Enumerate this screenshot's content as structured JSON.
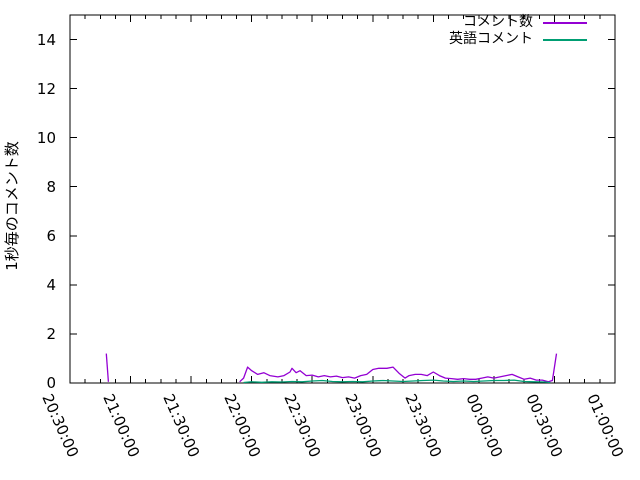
{
  "chart_data": {
    "type": "line",
    "title": "",
    "xlabel": "",
    "ylabel": "1秒毎のコメント数",
    "ylim": [
      0,
      15
    ],
    "y_ticks": [
      0,
      2,
      4,
      6,
      8,
      10,
      12,
      14
    ],
    "x_tick_labels": [
      "20:30:00",
      "21:00:00",
      "21:30:00",
      "22:00:00",
      "22:30:00",
      "23:00:00",
      "23:30:00",
      "00:00:00",
      "00:30:00",
      "01:00:00"
    ],
    "x_major_interval_min": 30,
    "x_minor_divisions": 4,
    "grid": false,
    "legend_position": "top-right",
    "background": "#ffffff",
    "border_color": "#000000",
    "series": [
      {
        "name": "コメント数",
        "color": "#9400d3",
        "points": [
          [
            "20:48",
            1.2
          ],
          [
            "20:49",
            0.05
          ],
          null,
          [
            "21:54",
            0.05
          ],
          [
            "21:56",
            0.2
          ],
          [
            "21:58",
            0.65
          ],
          [
            "22:00",
            0.5
          ],
          [
            "22:03",
            0.35
          ],
          [
            "22:06",
            0.42
          ],
          [
            "22:09",
            0.3
          ],
          [
            "22:13",
            0.25
          ],
          [
            "22:16",
            0.3
          ],
          [
            "22:19",
            0.45
          ],
          [
            "22:20",
            0.6
          ],
          [
            "22:22",
            0.42
          ],
          [
            "22:24",
            0.5
          ],
          [
            "22:27",
            0.3
          ],
          [
            "22:30",
            0.32
          ],
          [
            "22:33",
            0.25
          ],
          [
            "22:36",
            0.3
          ],
          [
            "22:39",
            0.25
          ],
          [
            "22:42",
            0.28
          ],
          [
            "22:45",
            0.22
          ],
          [
            "22:48",
            0.25
          ],
          [
            "22:51",
            0.2
          ],
          [
            "22:54",
            0.3
          ],
          [
            "22:57",
            0.35
          ],
          [
            "23:00",
            0.55
          ],
          [
            "23:03",
            0.6
          ],
          [
            "23:07",
            0.6
          ],
          [
            "23:10",
            0.65
          ],
          [
            "23:13",
            0.4
          ],
          [
            "23:16",
            0.2
          ],
          [
            "23:18",
            0.3
          ],
          [
            "23:21",
            0.35
          ],
          [
            "23:24",
            0.35
          ],
          [
            "23:27",
            0.3
          ],
          [
            "23:30",
            0.45
          ],
          [
            "23:33",
            0.3
          ],
          [
            "23:36",
            0.2
          ],
          [
            "23:39",
            0.18
          ],
          [
            "23:42",
            0.15
          ],
          [
            "23:45",
            0.18
          ],
          [
            "23:48",
            0.15
          ],
          [
            "23:51",
            0.15
          ],
          [
            "23:54",
            0.2
          ],
          [
            "23:57",
            0.25
          ],
          [
            "00:00",
            0.2
          ],
          [
            "00:03",
            0.25
          ],
          [
            "00:06",
            0.3
          ],
          [
            "00:09",
            0.35
          ],
          [
            "00:12",
            0.25
          ],
          [
            "00:15",
            0.15
          ],
          [
            "00:18",
            0.2
          ],
          [
            "00:21",
            0.12
          ],
          [
            "00:24",
            0.12
          ],
          [
            "00:27",
            0.05
          ],
          [
            "00:29",
            0.1
          ],
          [
            "00:31",
            1.2
          ]
        ]
      },
      {
        "name": "英語コメント",
        "color": "#009e73",
        "points": [
          [
            "21:56",
            0.02
          ],
          [
            "22:00",
            0.05
          ],
          [
            "22:05",
            0.03
          ],
          [
            "22:10",
            0.05
          ],
          [
            "22:15",
            0.04
          ],
          [
            "22:20",
            0.06
          ],
          [
            "22:25",
            0.05
          ],
          [
            "22:30",
            0.08
          ],
          [
            "22:35",
            0.1
          ],
          [
            "22:40",
            0.06
          ],
          [
            "22:45",
            0.05
          ],
          [
            "22:50",
            0.06
          ],
          [
            "22:55",
            0.05
          ],
          [
            "23:00",
            0.08
          ],
          [
            "23:05",
            0.1
          ],
          [
            "23:10",
            0.08
          ],
          [
            "23:15",
            0.06
          ],
          [
            "23:20",
            0.08
          ],
          [
            "23:25",
            0.1
          ],
          [
            "23:30",
            0.12
          ],
          [
            "23:35",
            0.08
          ],
          [
            "23:40",
            0.06
          ],
          [
            "23:45",
            0.08
          ],
          [
            "23:50",
            0.06
          ],
          [
            "23:55",
            0.08
          ],
          [
            "00:00",
            0.1
          ],
          [
            "00:05",
            0.1
          ],
          [
            "00:10",
            0.12
          ],
          [
            "00:15",
            0.06
          ],
          [
            "00:20",
            0.05
          ],
          [
            "00:25",
            0.04
          ],
          [
            "00:28",
            0.02
          ]
        ]
      }
    ]
  }
}
